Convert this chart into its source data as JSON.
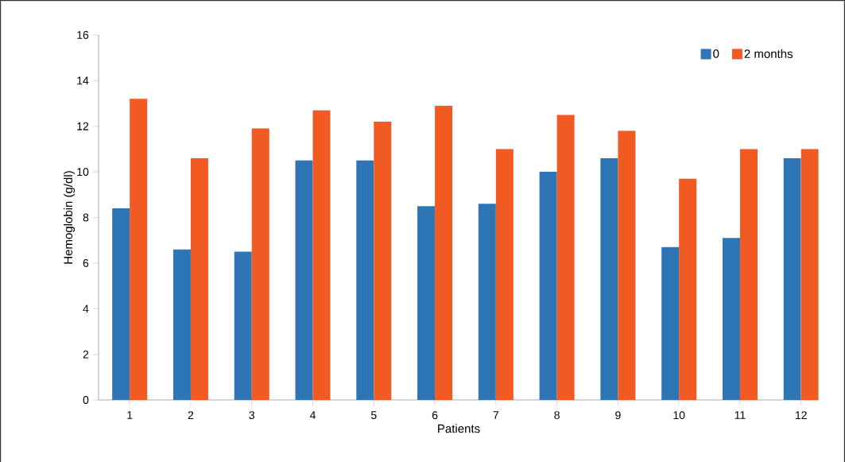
{
  "chart_data": {
    "type": "bar",
    "xlabel": "Patients",
    "ylabel": "Hemoglobin (g/dl)",
    "categories": [
      "1",
      "2",
      "3",
      "4",
      "5",
      "6",
      "7",
      "8",
      "9",
      "10",
      "11",
      "12"
    ],
    "series": [
      {
        "name": "0",
        "color": "#2e75b6",
        "values": [
          8.4,
          6.6,
          6.5,
          10.5,
          10.5,
          8.5,
          8.6,
          10.0,
          10.6,
          6.7,
          7.1,
          10.6
        ]
      },
      {
        "name": "2 months",
        "color": "#f15a22",
        "values": [
          13.2,
          10.6,
          11.9,
          12.7,
          12.2,
          12.9,
          11.0,
          12.5,
          11.8,
          9.7,
          11.0,
          11.0
        ]
      }
    ],
    "ylim": [
      0,
      16
    ],
    "yticks": [
      0,
      2,
      4,
      6,
      8,
      10,
      12,
      14,
      16
    ],
    "grid": false,
    "legend": "top right"
  }
}
